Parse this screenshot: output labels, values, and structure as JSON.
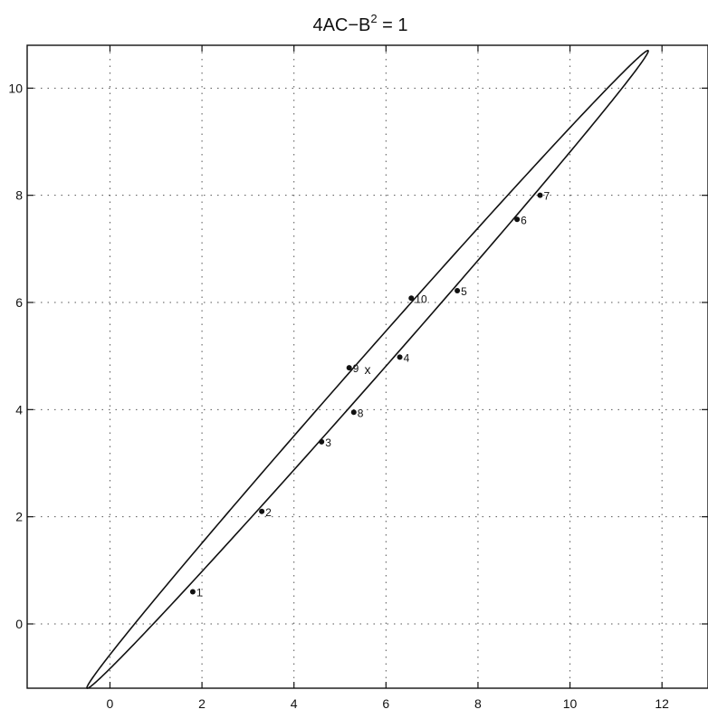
{
  "chart_data": {
    "type": "scatter",
    "title": "4AC−B",
    "title_superscript": "2",
    "title_suffix": " = 1",
    "xlabel": "",
    "ylabel": "",
    "xlim": [
      -1.8,
      13.0
    ],
    "ylim": [
      -1.2,
      10.8
    ],
    "grid": "dotted",
    "x_ticks": [
      0,
      2,
      4,
      6,
      8,
      10,
      12
    ],
    "y_ticks": [
      0,
      2,
      4,
      6,
      8,
      10
    ],
    "x_tick_labels": [
      "0",
      "2",
      "4",
      "6",
      "8",
      "10",
      "12"
    ],
    "y_tick_labels": [
      "0",
      "2",
      "4",
      "6",
      "8",
      "10"
    ],
    "ellipse": {
      "center": [
        5.6,
        4.75
      ],
      "vertex_low": [
        -0.5,
        -1.2
      ],
      "vertex_high": [
        11.7,
        10.7
      ],
      "minor_semi_axis": 0.235
    },
    "center_marker": "x",
    "points": [
      {
        "label": "1",
        "x": 1.8,
        "y": 0.6
      },
      {
        "label": "2",
        "x": 3.3,
        "y": 2.1
      },
      {
        "label": "3",
        "x": 4.6,
        "y": 3.4
      },
      {
        "label": "4",
        "x": 6.3,
        "y": 4.98
      },
      {
        "label": "5",
        "x": 7.55,
        "y": 6.22
      },
      {
        "label": "6",
        "x": 8.85,
        "y": 7.55
      },
      {
        "label": "7",
        "x": 9.35,
        "y": 8.0
      },
      {
        "label": "8",
        "x": 5.3,
        "y": 3.95
      },
      {
        "label": "9",
        "x": 5.2,
        "y": 4.78
      },
      {
        "label": "10",
        "x": 6.55,
        "y": 6.08
      }
    ]
  }
}
